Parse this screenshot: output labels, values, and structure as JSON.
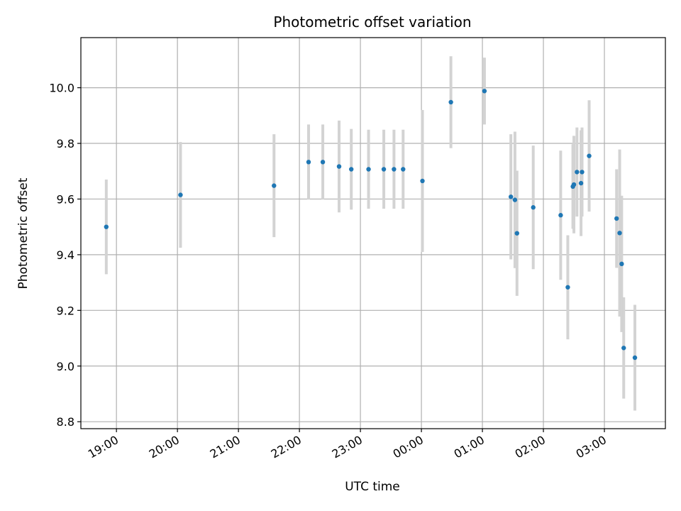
{
  "chart_data": {
    "type": "scatter",
    "title": "Photometric offset variation",
    "xlabel": "UTC time",
    "ylabel": "Photometric offset",
    "x_unit": "hours",
    "x_range": [
      "18:25",
      "04:00"
    ],
    "ylim": [
      8.775,
      10.18
    ],
    "y_ticks": [
      8.8,
      9.0,
      9.2,
      9.4,
      9.6,
      9.8,
      10.0
    ],
    "x_ticks": [
      "19:00",
      "20:00",
      "21:00",
      "22:00",
      "23:00",
      "00:00",
      "01:00",
      "02:00",
      "03:00"
    ],
    "x_tick_rotation_deg": 30,
    "grid": true,
    "colors": {
      "marker": "#1f77b4",
      "errorbar": "#d3d3d3",
      "grid": "#b0b0b0",
      "axes": "#000000"
    },
    "series": [
      {
        "points": [
          {
            "time": "18:50",
            "y": 9.5,
            "err": 0.17
          },
          {
            "time": "20:03",
            "y": 9.615,
            "err": 0.19
          },
          {
            "time": "21:35",
            "y": 9.648,
            "err": 0.185
          },
          {
            "time": "22:09",
            "y": 9.733,
            "err": 0.135
          },
          {
            "time": "22:23",
            "y": 9.733,
            "err": 0.135
          },
          {
            "time": "22:39",
            "y": 9.717,
            "err": 0.165
          },
          {
            "time": "22:51",
            "y": 9.707,
            "err": 0.145
          },
          {
            "time": "23:08",
            "y": 9.707,
            "err": 0.142
          },
          {
            "time": "23:23",
            "y": 9.707,
            "err": 0.142
          },
          {
            "time": "23:33",
            "y": 9.707,
            "err": 0.142
          },
          {
            "time": "23:42",
            "y": 9.707,
            "err": 0.142
          },
          {
            "time": "00:01",
            "y": 9.665,
            "err": 0.255
          },
          {
            "time": "00:29",
            "y": 9.948,
            "err": 0.165
          },
          {
            "time": "01:02",
            "y": 9.988,
            "err": 0.12
          },
          {
            "time": "01:28",
            "y": 9.608,
            "err": 0.225
          },
          {
            "time": "01:32",
            "y": 9.597,
            "err": 0.245
          },
          {
            "time": "01:34",
            "y": 9.477,
            "err": 0.225
          },
          {
            "time": "01:50",
            "y": 9.57,
            "err": 0.222
          },
          {
            "time": "02:17",
            "y": 9.542,
            "err": 0.232
          },
          {
            "time": "02:24",
            "y": 9.283,
            "err": 0.187
          },
          {
            "time": "02:29",
            "y": 9.645,
            "err": 0.152
          },
          {
            "time": "02:30",
            "y": 9.652,
            "err": 0.175
          },
          {
            "time": "02:33",
            "y": 9.697,
            "err": 0.16
          },
          {
            "time": "02:37",
            "y": 9.657,
            "err": 0.19
          },
          {
            "time": "02:38",
            "y": 9.697,
            "err": 0.16
          },
          {
            "time": "02:45",
            "y": 9.755,
            "err": 0.2
          },
          {
            "time": "03:12",
            "y": 9.53,
            "err": 0.177
          },
          {
            "time": "03:15",
            "y": 9.478,
            "err": 0.3
          },
          {
            "time": "03:17",
            "y": 9.367,
            "err": 0.245
          },
          {
            "time": "03:19",
            "y": 9.065,
            "err": 0.182
          },
          {
            "time": "03:30",
            "y": 9.03,
            "err": 0.19
          }
        ]
      }
    ]
  }
}
